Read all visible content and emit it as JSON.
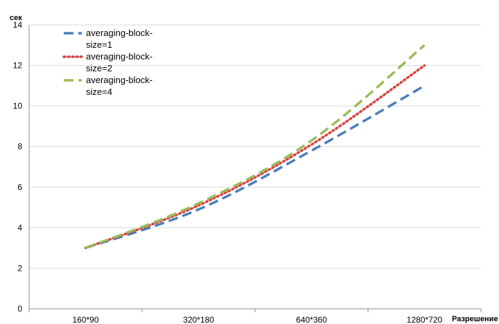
{
  "chart_data": {
    "type": "line",
    "title": "",
    "ylabel": "сек",
    "xlabel": "Разрешение",
    "categories": [
      "160*90",
      "320*180",
      "640*360",
      "1280*720"
    ],
    "ylim": [
      0,
      14
    ],
    "yticks": [
      "0",
      "2",
      "4",
      "6",
      "8",
      "10",
      "12",
      "14"
    ],
    "grid": "horizontal",
    "legend_position": "top-left",
    "series": [
      {
        "name": "averaging-block-size=1",
        "legend_lines": [
          "averaging-block-",
          "size=1"
        ],
        "values": [
          3.0,
          4.9,
          7.8,
          11.0
        ],
        "color": "#4a7ebb",
        "dash": "dashed"
      },
      {
        "name": "averaging-block-size=2",
        "legend_lines": [
          "averaging-block-",
          "size=2"
        ],
        "values": [
          3.0,
          5.1,
          8.1,
          12.0
        ],
        "color": "#d9413f",
        "dash": "dotted"
      },
      {
        "name": "averaging-block-size=4",
        "legend_lines": [
          "averaging-block-",
          "size=4"
        ],
        "values": [
          3.0,
          5.2,
          8.3,
          13.0
        ],
        "color": "#9bbb59",
        "dash": "dashed"
      }
    ]
  }
}
